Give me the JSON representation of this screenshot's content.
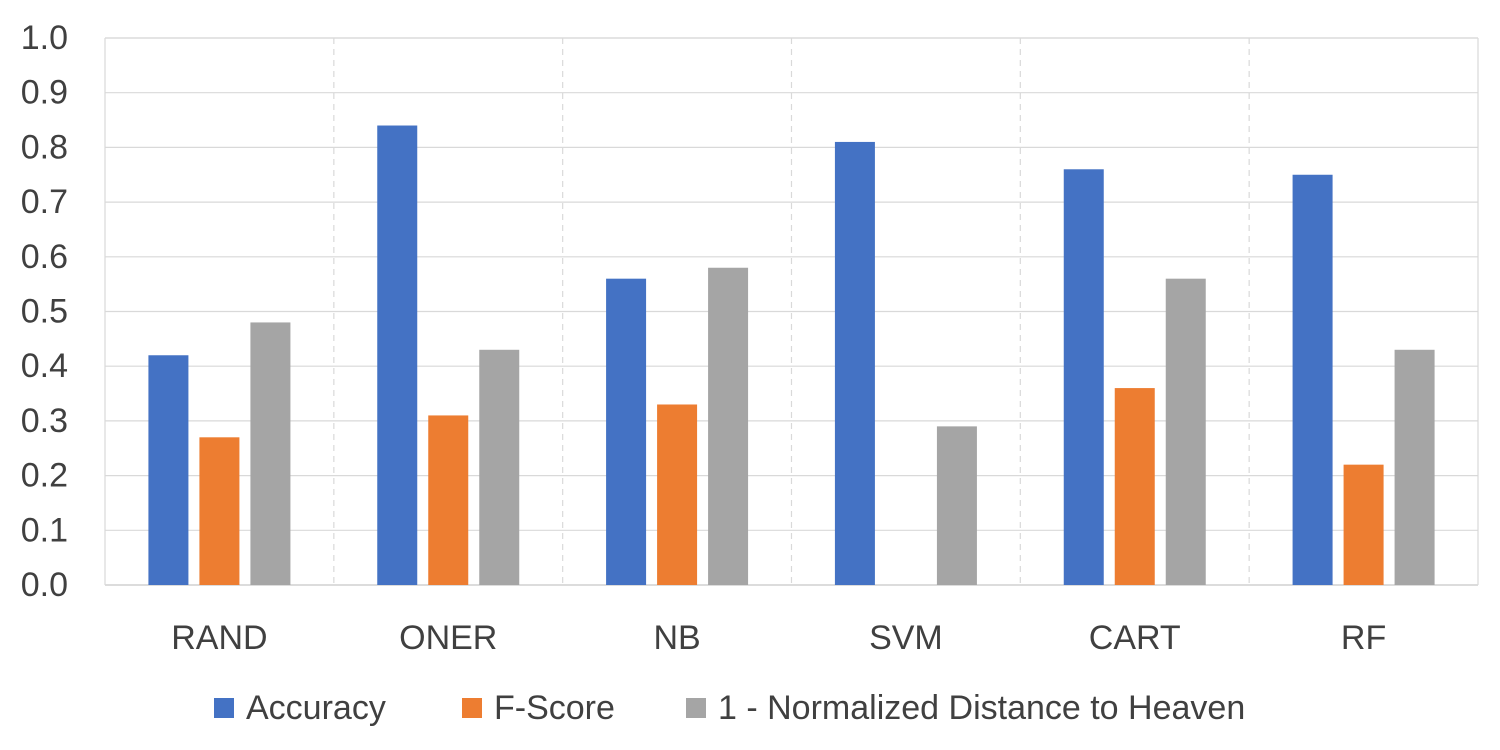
{
  "chart_data": {
    "type": "bar",
    "categories": [
      "RAND",
      "ONER",
      "NB",
      "SVM",
      "CART",
      "RF"
    ],
    "series": [
      {
        "name": "Accuracy",
        "color": "#4472C4",
        "values": [
          0.42,
          0.84,
          0.56,
          0.81,
          0.76,
          0.75
        ]
      },
      {
        "name": "F-Score",
        "color": "#ED7D31",
        "values": [
          0.27,
          0.31,
          0.33,
          0.0,
          0.36,
          0.22
        ]
      },
      {
        "name": "1 - Normalized Distance to Heaven",
        "color": "#A5A5A5",
        "values": [
          0.48,
          0.43,
          0.58,
          0.29,
          0.56,
          0.43
        ]
      }
    ],
    "yticks": [
      "0.0",
      "0.1",
      "0.2",
      "0.3",
      "0.4",
      "0.5",
      "0.6",
      "0.7",
      "0.8",
      "0.9",
      "1.0"
    ],
    "ylim": [
      0,
      1.0
    ],
    "grid": true,
    "legend_position": "bottom"
  }
}
